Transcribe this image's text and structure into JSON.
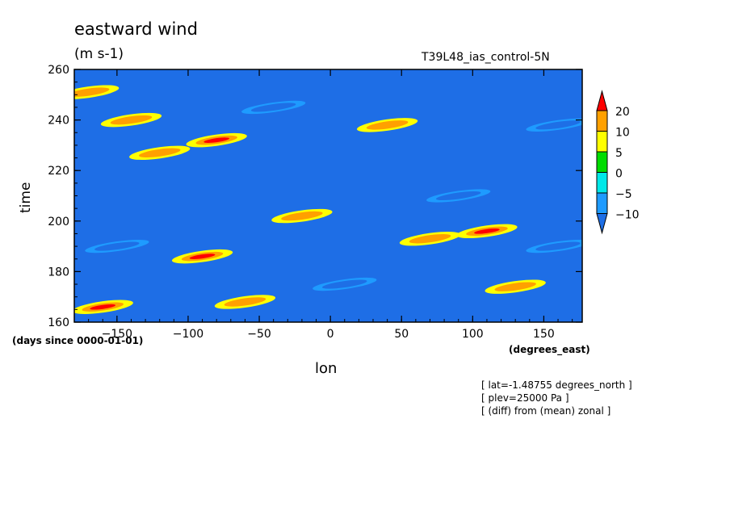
{
  "chart_data": {
    "type": "heatmap",
    "title": "eastward wind",
    "units": "(m s-1)",
    "run_label": "T39L48_ias_control-5N",
    "xlabel": "lon",
    "xunits": "(degrees_east)",
    "ylabel": "time",
    "yunits": "(days since 0000-01-01)",
    "xlim": [
      -180,
      177
    ],
    "ylim": [
      160,
      260
    ],
    "xticks": [
      -150,
      -100,
      -50,
      0,
      50,
      100,
      150
    ],
    "yticks": [
      160,
      180,
      200,
      220,
      240,
      260
    ],
    "colorbar": {
      "levels": [
        "-10",
        "-5",
        "0",
        "5",
        "10",
        "20"
      ],
      "colors": [
        "#1e6fe6",
        "#1e9bff",
        "#00e8e8",
        "#00dc00",
        "#ffff00",
        "#ffa000",
        "#ff0000"
      ]
    },
    "features": [
      {
        "lon": -80,
        "time": 232,
        "value": 22
      },
      {
        "lon": -120,
        "time": 227,
        "value": 12
      },
      {
        "lon": -90,
        "time": 186,
        "value": 21
      },
      {
        "lon": 110,
        "time": 196,
        "value": 22
      },
      {
        "lon": 70,
        "time": 193,
        "value": 12
      },
      {
        "lon": -20,
        "time": 202,
        "value": 14
      },
      {
        "lon": -160,
        "time": 166,
        "value": 20
      },
      {
        "lon": -60,
        "time": 168,
        "value": 14
      },
      {
        "lon": -170,
        "time": 251,
        "value": 14
      },
      {
        "lon": -140,
        "time": 240,
        "value": 13
      },
      {
        "lon": 40,
        "time": 238,
        "value": 12
      },
      {
        "lon": 130,
        "time": 174,
        "value": 11
      },
      {
        "lon": 160,
        "time": 238,
        "value": -14
      },
      {
        "lon": -40,
        "time": 245,
        "value": -12
      },
      {
        "lon": 90,
        "time": 210,
        "value": -13
      },
      {
        "lon": 10,
        "time": 175,
        "value": -12
      },
      {
        "lon": -150,
        "time": 190,
        "value": -11
      },
      {
        "lon": 160,
        "time": 190,
        "value": -14
      }
    ]
  },
  "notes": [
    "[ lat=-1.48755 degrees_north ]",
    "[ plev=25000 Pa ]",
    "[ (diff) from (mean) zonal ]"
  ]
}
